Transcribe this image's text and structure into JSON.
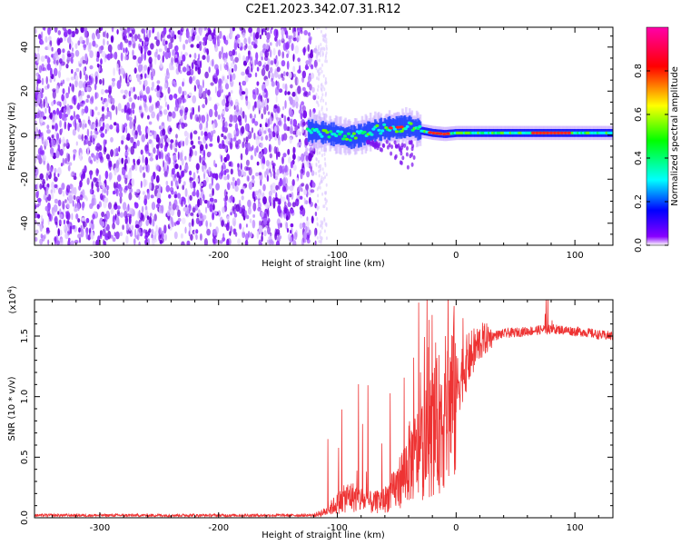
{
  "title": "C2E1.2023.342.07.31.R12",
  "chart_data": [
    {
      "type": "heatmap",
      "name": "spectrogram",
      "xlabel": "Height of straight line (km)",
      "ylabel": "Frequency (Hz)",
      "xlim": [
        -355,
        132
      ],
      "ylim": [
        -50,
        49
      ],
      "xticks": [
        -300,
        -200,
        -100,
        0,
        100
      ],
      "xtick_labels": [
        "-300",
        "-200",
        "-100",
        "0",
        "100"
      ],
      "yticks": [
        -40,
        -20,
        0,
        20,
        40
      ],
      "ytick_labels": [
        "-40",
        "-20",
        "0",
        "20",
        "40"
      ],
      "noise_region_x": [
        -355,
        -118
      ],
      "signal_track": {
        "x": [
          -125,
          -110,
          -100,
          -90,
          -80,
          -70,
          -60,
          -50,
          -40,
          -30,
          -20,
          -10,
          0,
          20,
          40,
          60,
          80,
          100,
          132
        ],
        "y": [
          2,
          1,
          0,
          -1,
          0,
          2,
          3,
          3.5,
          4,
          2,
          1,
          0.5,
          1,
          1,
          1,
          1,
          1,
          1,
          1
        ]
      },
      "grid": false
    },
    {
      "type": "colorbar",
      "name": "amplitude-colorbar",
      "label": "Normalized spectral amplitude",
      "range": [
        0,
        1
      ],
      "ticks": [
        0.0,
        0.2,
        0.4,
        0.6,
        0.8
      ],
      "tick_labels": [
        "0.0",
        "0.2",
        "0.4",
        "0.6",
        "0.8"
      ],
      "colors": [
        "#ffffff",
        "#8800ff",
        "#0000ff",
        "#00ffff",
        "#00ff00",
        "#ffff00",
        "#ff0000",
        "#ff00aa"
      ]
    },
    {
      "type": "line",
      "name": "snr-plot",
      "xlabel": "Height of straight line (km)",
      "ylabel": "SNR (10 * v/v)",
      "y_scale_label": "(x10",
      "y_scale_exp": "4",
      "y_scale_close": ")",
      "xlim": [
        -355,
        132
      ],
      "ylim": [
        0,
        1.8
      ],
      "xticks": [
        -300,
        -200,
        -100,
        0,
        100
      ],
      "xtick_labels": [
        "-300",
        "-200",
        "-100",
        "0",
        "100"
      ],
      "yticks": [
        0.0,
        0.5,
        1.0,
        1.5
      ],
      "ytick_labels": [
        "0.0",
        "0.5",
        "1.0",
        "1.5"
      ],
      "series": [
        {
          "color": "#ee3333",
          "envelope": {
            "x": [
              -355,
              -120,
              -110,
              -100,
              -90,
              -80,
              -70,
              -60,
              -50,
              -40,
              -30,
              -20,
              -10,
              -5,
              0,
              5,
              10,
              20,
              30,
              40,
              50,
              60,
              70,
              80,
              90,
              100,
              110,
              120,
              132
            ],
            "y": [
              0.02,
              0.02,
              0.05,
              0.12,
              0.18,
              0.15,
              0.12,
              0.15,
              0.25,
              0.45,
              0.55,
              0.7,
              0.85,
              0.95,
              1.05,
              1.2,
              1.3,
              1.45,
              1.5,
              1.52,
              1.53,
              1.54,
              1.55,
              1.56,
              1.55,
              1.54,
              1.53,
              1.51,
              1.5
            ]
          }
        }
      ],
      "grid": false
    }
  ]
}
